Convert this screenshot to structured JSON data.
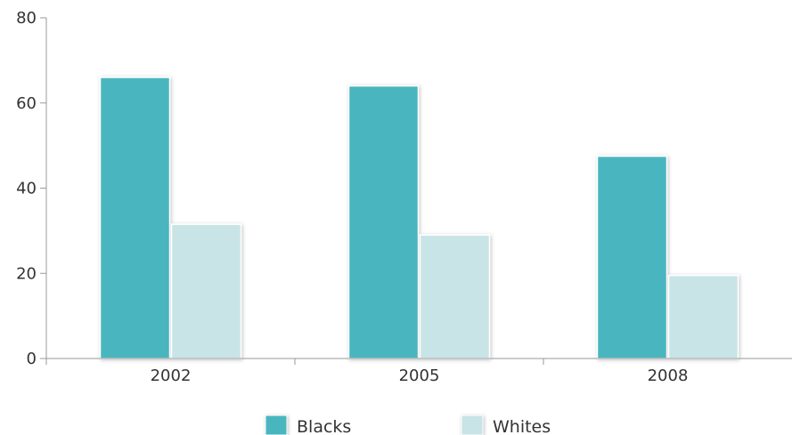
{
  "chart_data": {
    "type": "bar",
    "categories": [
      "2002",
      "2005",
      "2008"
    ],
    "series": [
      {
        "name": "Blacks",
        "values": [
          66,
          64,
          47.5
        ],
        "color": "#49b6bf"
      },
      {
        "name": "Whites",
        "values": [
          31.5,
          29,
          19.5
        ],
        "color": "#c9e4e7"
      }
    ],
    "ylim": [
      0,
      80
    ],
    "yticks": [
      "0",
      "20",
      "40",
      "60",
      "80"
    ],
    "title": "",
    "xlabel": "",
    "ylabel": "",
    "grid": false,
    "legend": "bottom-center"
  }
}
